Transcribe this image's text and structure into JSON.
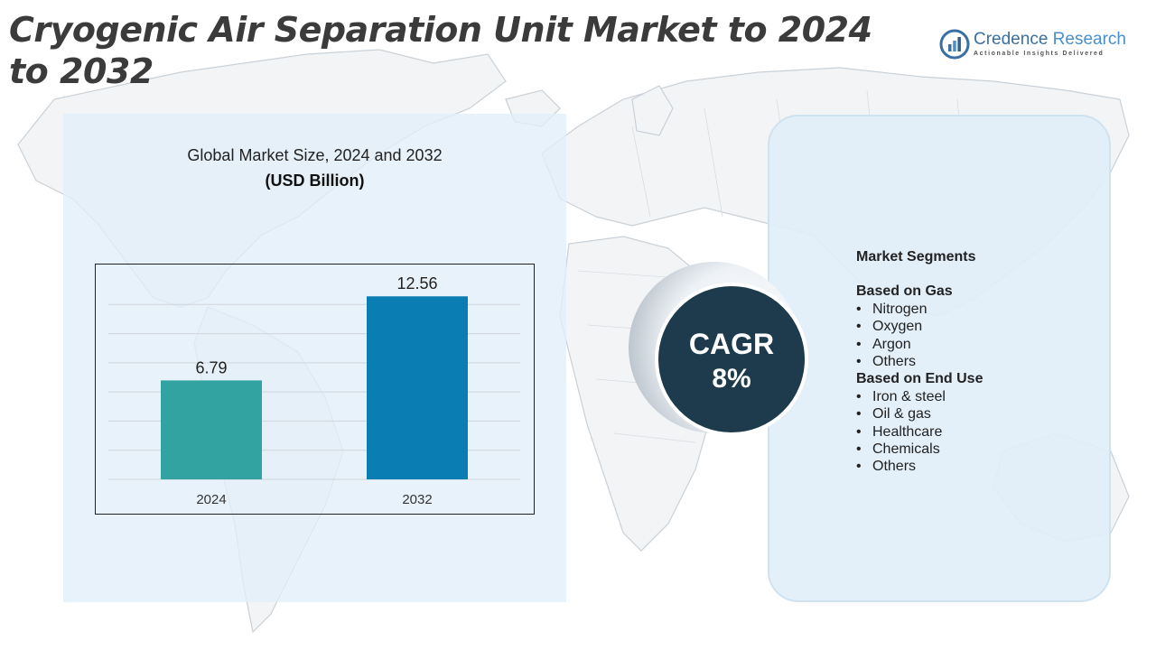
{
  "page": {
    "title": "Cryogenic Air Separation Unit Market to 2024 to 2032"
  },
  "logo": {
    "name_part1": "Credence",
    "name_part2": "Research",
    "tagline": "Actionable Insights Delivered"
  },
  "chart_data": {
    "type": "bar",
    "title": "Global Market Size,  2024 and 2032",
    "subtitle": "(USD Billion)",
    "categories": [
      "2024",
      "2032"
    ],
    "values": [
      6.79,
      12.56
    ],
    "data_labels": [
      "6.79",
      "12.56"
    ],
    "ylim": [
      0,
      14
    ],
    "grid": true,
    "colors": [
      "#33a3a1",
      "#0a7db3"
    ]
  },
  "cagr": {
    "label": "CAGR",
    "value": "8%"
  },
  "segments": {
    "heading": "Market Segments",
    "groups": [
      {
        "title": "Based on Gas",
        "items": [
          "Nitrogen",
          "Oxygen",
          "Argon",
          "Others"
        ]
      },
      {
        "title": "Based on End Use",
        "items": [
          "Iron & steel",
          "Oil & gas",
          "Healthcare",
          "Chemicals",
          "Others"
        ]
      }
    ]
  }
}
